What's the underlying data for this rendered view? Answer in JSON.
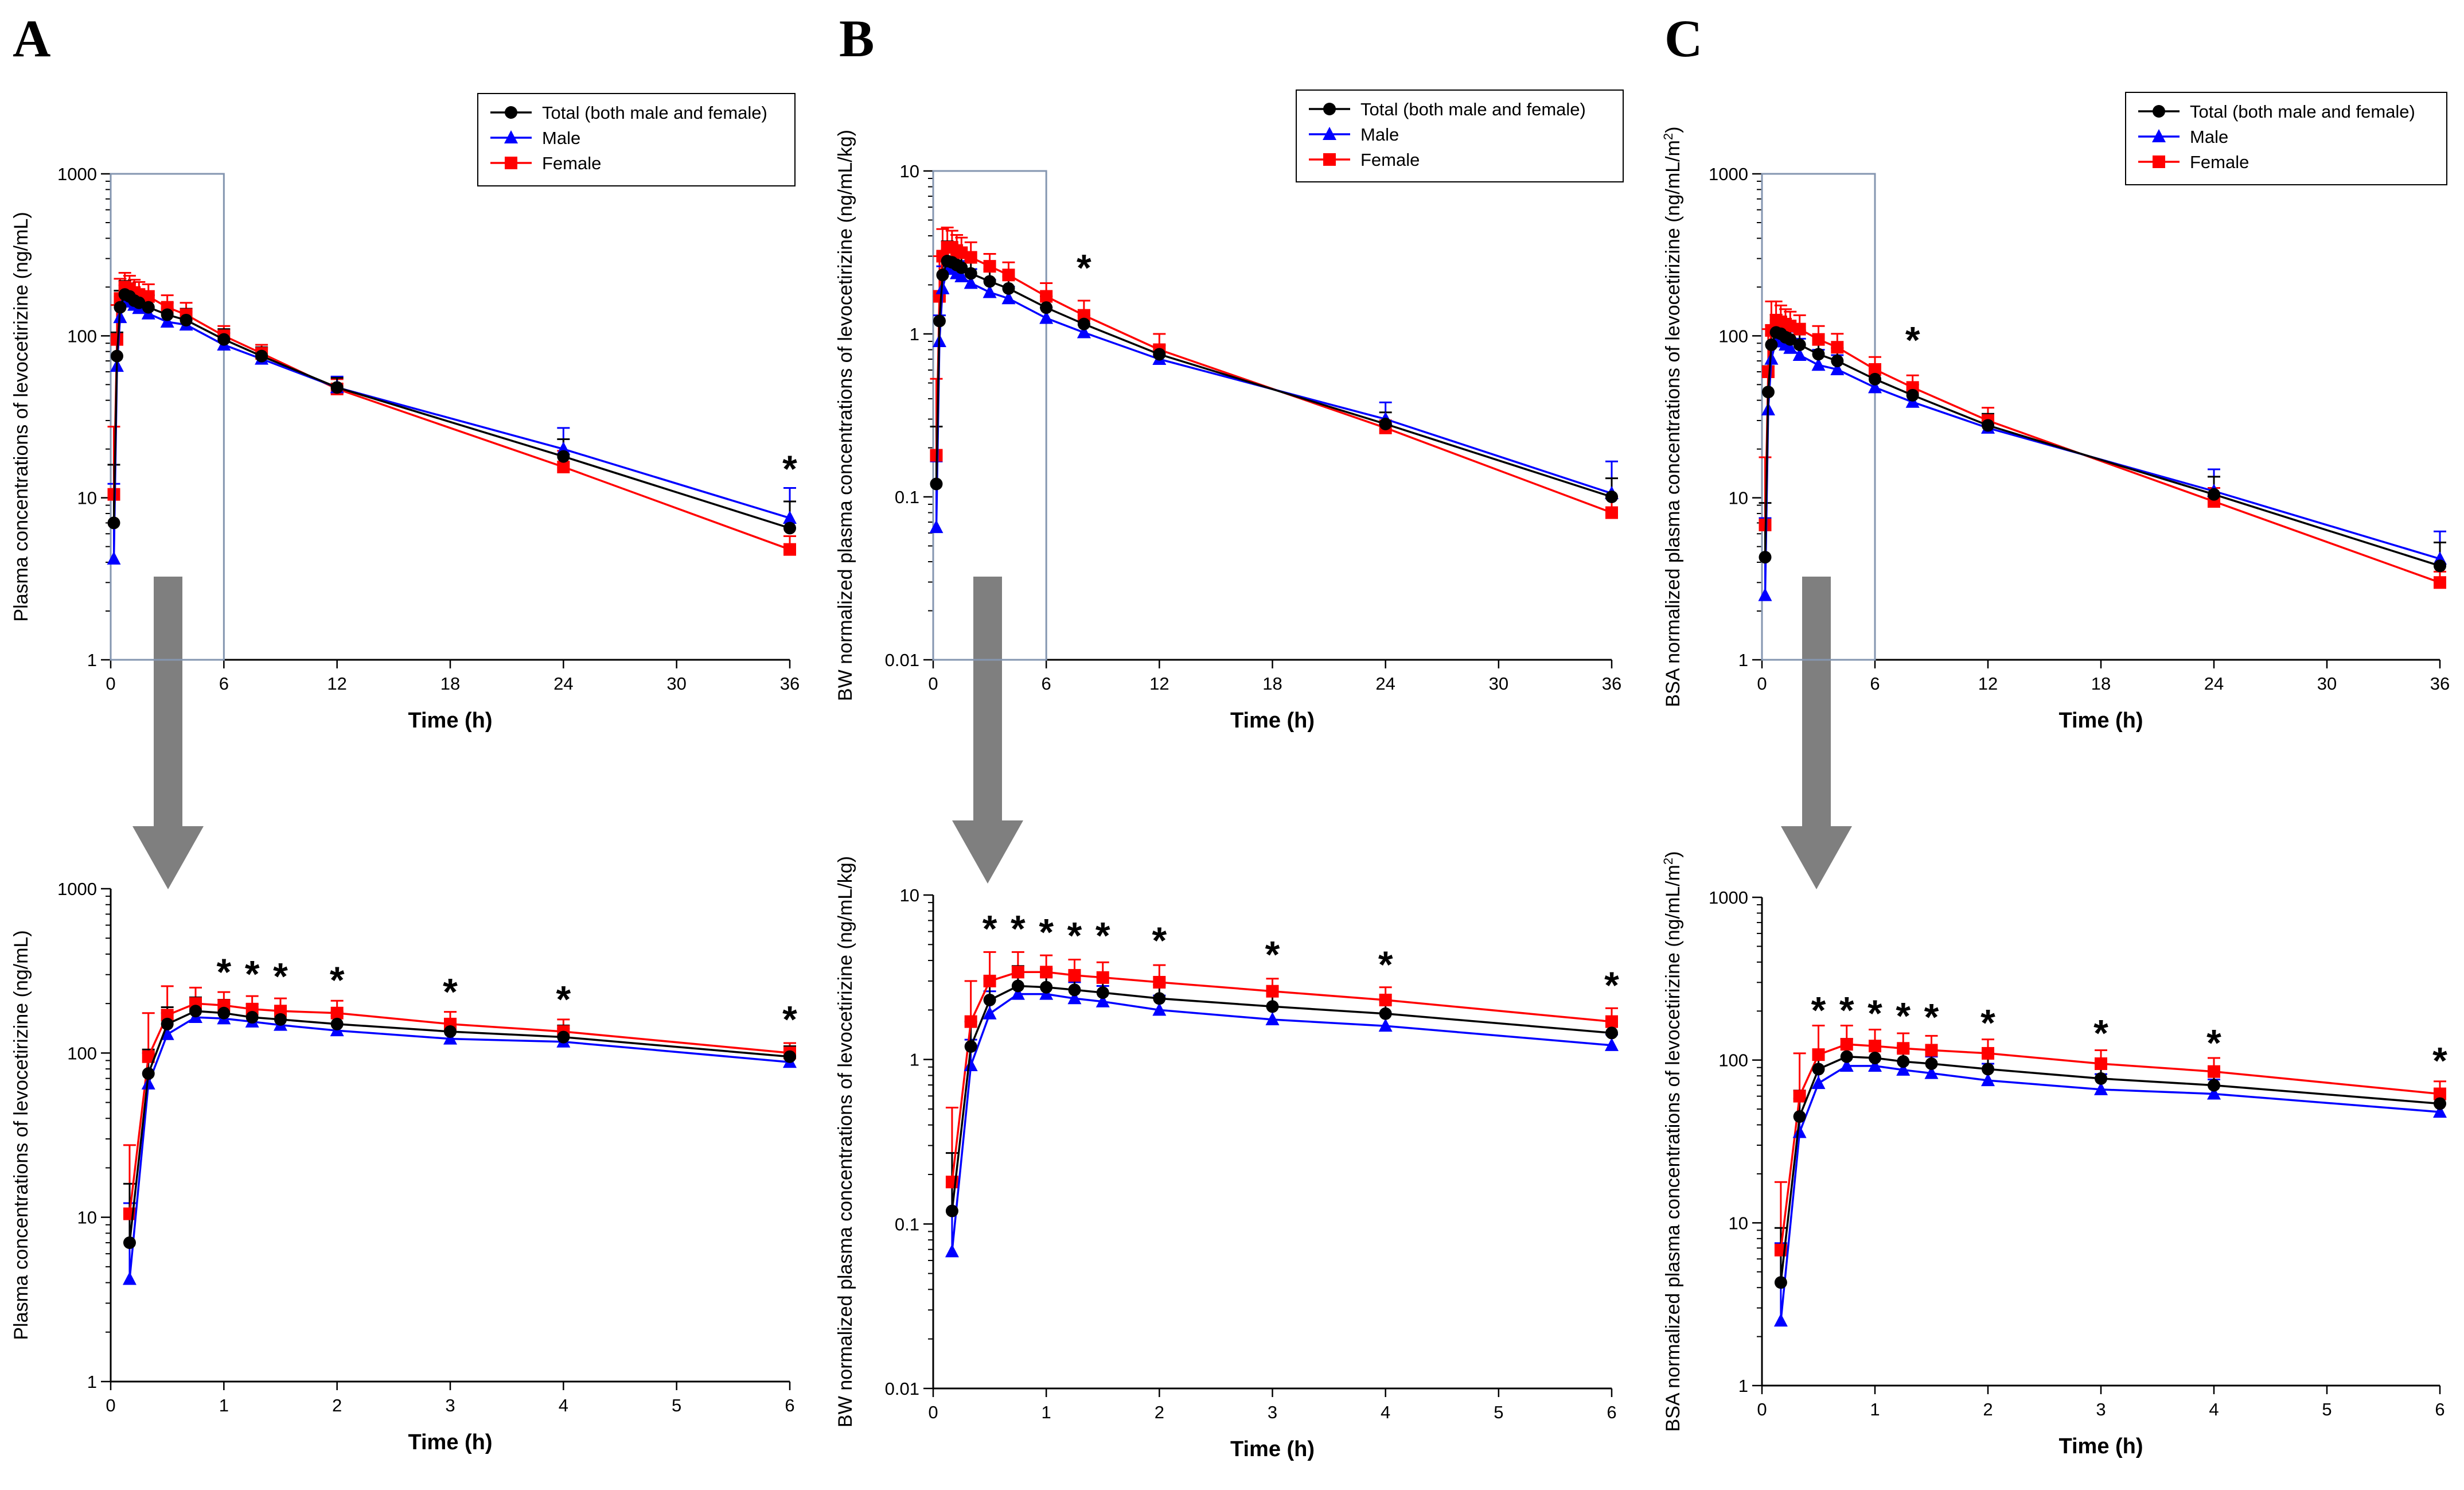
{
  "figure": {
    "panel_letters": [
      "A",
      "B",
      "C"
    ],
    "xlabel": "Time (h)",
    "series_colors": {
      "Total": "#000000",
      "Male": "#0000ff",
      "Female": "#ff0000"
    },
    "legend_entries": [
      "Total (both male and female)",
      "Male",
      "Female"
    ]
  },
  "chart_data": [
    {
      "id": "A-top",
      "panel": "A",
      "type": "line",
      "yscale": "log",
      "ylabel": "Plasma concentrations of levocetirizine (ng/mL)",
      "xlabel": "Time (h)",
      "xlim": [
        0,
        36
      ],
      "xticks": [
        0,
        6,
        12,
        18,
        24,
        30,
        36
      ],
      "ylim": [
        1,
        1000
      ],
      "yticks": [
        1,
        10,
        100,
        1000
      ],
      "ytick_labels": [
        "1",
        "10",
        "100",
        "1000"
      ],
      "legend": [
        "Total (both male and female)",
        "Male",
        "Female"
      ],
      "zoom_box": {
        "x": [
          0,
          6
        ],
        "y": [
          1,
          1000
        ]
      },
      "x": [
        0.167,
        0.333,
        0.5,
        0.75,
        1,
        1.25,
        1.5,
        2,
        3,
        4,
        6,
        8,
        12,
        24,
        36
      ],
      "series": [
        {
          "name": "Total",
          "values": [
            7,
            75,
            150,
            180,
            175,
            165,
            160,
            150,
            135,
            125,
            95,
            75,
            48,
            18,
            6.5
          ],
          "err": [
            9,
            30,
            40,
            38,
            36,
            33,
            30,
            28,
            25,
            22,
            15,
            10,
            7,
            5,
            3
          ]
        },
        {
          "name": "Male",
          "values": [
            4.2,
            65,
            130,
            165,
            162,
            155,
            148,
            137,
            122,
            117,
            88,
            72,
            48,
            20,
            7.5
          ],
          "err": [
            8,
            35,
            45,
            40,
            38,
            35,
            32,
            30,
            26,
            24,
            16,
            11,
            8,
            7,
            4
          ]
        },
        {
          "name": "Female",
          "values": [
            10.5,
            95,
            170,
            200,
            195,
            185,
            180,
            175,
            150,
            135,
            100,
            78,
            47,
            15.5,
            4.8
          ],
          "err": [
            17,
            60,
            55,
            45,
            40,
            37,
            35,
            33,
            28,
            25,
            15,
            10,
            7,
            4,
            1
          ]
        }
      ],
      "annotations": [
        {
          "x": 36,
          "y": 16,
          "text": "*"
        }
      ]
    },
    {
      "id": "A-bottom",
      "panel": "A",
      "type": "line",
      "yscale": "log",
      "ylabel": "Plasma concentrations of levocetirizine (ng/mL)",
      "xlabel": "Time (h)",
      "xlim": [
        0,
        6
      ],
      "xticks": [
        0,
        1,
        2,
        3,
        4,
        5,
        6
      ],
      "ylim": [
        1,
        1000
      ],
      "yticks": [
        1,
        10,
        100,
        1000
      ],
      "ytick_labels": [
        "1",
        "10",
        "100",
        "1000"
      ],
      "x": [
        0.167,
        0.333,
        0.5,
        0.75,
        1,
        1.25,
        1.5,
        2,
        3,
        4,
        6
      ],
      "series": [
        {
          "name": "Total",
          "values": [
            7,
            75,
            150,
            180,
            175,
            165,
            160,
            150,
            135,
            125,
            95
          ],
          "err": [
            9,
            30,
            40,
            38,
            36,
            33,
            30,
            28,
            25,
            22,
            15
          ]
        },
        {
          "name": "Male",
          "values": [
            4.2,
            65,
            130,
            165,
            162,
            155,
            148,
            137,
            122,
            117,
            88
          ],
          "err": [
            8,
            35,
            45,
            40,
            38,
            35,
            32,
            30,
            26,
            24,
            16
          ]
        },
        {
          "name": "Female",
          "values": [
            10.5,
            95,
            170,
            200,
            195,
            185,
            180,
            175,
            150,
            135,
            100
          ],
          "err": [
            17,
            80,
            85,
            50,
            40,
            37,
            35,
            33,
            28,
            25,
            15
          ]
        }
      ],
      "annotations": [
        {
          "x": 1,
          "y": 330,
          "text": "*"
        },
        {
          "x": 1.25,
          "y": 320,
          "text": "*"
        },
        {
          "x": 1.5,
          "y": 310,
          "text": "*"
        },
        {
          "x": 2,
          "y": 295,
          "text": "*"
        },
        {
          "x": 3,
          "y": 250,
          "text": "*"
        },
        {
          "x": 4,
          "y": 225,
          "text": "*"
        },
        {
          "x": 6,
          "y": 170,
          "text": "*"
        }
      ]
    },
    {
      "id": "B-top",
      "panel": "B",
      "type": "line",
      "yscale": "log",
      "ylabel": "BW normalized plasma concentrations of levocetirizine (ng/mL/kg)",
      "xlabel": "Time (h)",
      "xlim": [
        0,
        36
      ],
      "xticks": [
        0,
        6,
        12,
        18,
        24,
        30,
        36
      ],
      "ylim": [
        0.01,
        10
      ],
      "yticks": [
        0.01,
        0.1,
        1,
        10
      ],
      "ytick_labels": [
        "0.01",
        "0.1",
        "1",
        "10"
      ],
      "legend": [
        "Total (both male and female)",
        "Male",
        "Female"
      ],
      "zoom_box": {
        "x": [
          0,
          6
        ],
        "y": [
          0.01,
          10
        ]
      },
      "x": [
        0.167,
        0.333,
        0.5,
        0.75,
        1,
        1.25,
        1.5,
        2,
        3,
        4,
        6,
        8,
        12,
        24,
        36
      ],
      "series": [
        {
          "name": "Total",
          "values": [
            0.12,
            1.2,
            2.3,
            2.8,
            2.75,
            2.65,
            2.55,
            2.35,
            2.1,
            1.9,
            1.45,
            1.15,
            0.75,
            0.28,
            0.1
          ],
          "err": [
            0.15,
            0.5,
            0.8,
            0.9,
            0.8,
            0.7,
            0.6,
            0.5,
            0.4,
            0.35,
            0.25,
            0.15,
            0.1,
            0.05,
            0.03
          ]
        },
        {
          "name": "Male",
          "values": [
            0.065,
            0.9,
            1.9,
            2.5,
            2.5,
            2.35,
            2.25,
            2.05,
            1.8,
            1.65,
            1.25,
            1.02,
            0.7,
            0.3,
            0.105
          ],
          "err": [
            0.1,
            0.4,
            0.7,
            0.8,
            0.7,
            0.6,
            0.55,
            0.45,
            0.35,
            0.3,
            0.2,
            0.12,
            0.08,
            0.08,
            0.06
          ]
        },
        {
          "name": "Female",
          "values": [
            0.18,
            1.7,
            3.0,
            3.4,
            3.4,
            3.25,
            3.15,
            2.95,
            2.6,
            2.3,
            1.7,
            1.3,
            0.8,
            0.265,
            0.08
          ],
          "err": [
            0.35,
            1.3,
            1.4,
            1.1,
            0.9,
            0.8,
            0.75,
            0.7,
            0.5,
            0.45,
            0.35,
            0.3,
            0.2,
            0.03,
            0.02
          ]
        }
      ],
      "annotations": [
        {
          "x": 8,
          "y": 2.7,
          "text": "*"
        }
      ]
    },
    {
      "id": "B-bottom",
      "panel": "B",
      "type": "line",
      "yscale": "log",
      "ylabel": "BW normalized plasma concentrations of levocetirizine (ng/mL/kg)",
      "xlabel": "Time (h)",
      "xlim": [
        0,
        6
      ],
      "xticks": [
        0,
        1,
        2,
        3,
        4,
        5,
        6
      ],
      "ylim": [
        0.01,
        10
      ],
      "yticks": [
        0.01,
        0.1,
        1,
        10
      ],
      "ytick_labels": [
        "0.01",
        "0.1",
        "1",
        "10"
      ],
      "x": [
        0.167,
        0.333,
        0.5,
        0.75,
        1,
        1.25,
        1.5,
        2,
        3,
        4,
        6
      ],
      "series": [
        {
          "name": "Total",
          "values": [
            0.12,
            1.2,
            2.3,
            2.8,
            2.75,
            2.65,
            2.55,
            2.35,
            2.1,
            1.9,
            1.45
          ],
          "err": [
            0.15,
            0.5,
            0.8,
            0.9,
            0.8,
            0.7,
            0.6,
            0.5,
            0.4,
            0.35,
            0.25
          ]
        },
        {
          "name": "Male",
          "values": [
            0.068,
            0.92,
            1.9,
            2.5,
            2.5,
            2.35,
            2.25,
            2.0,
            1.75,
            1.6,
            1.22
          ],
          "err": [
            0.1,
            0.4,
            0.7,
            0.8,
            0.7,
            0.6,
            0.55,
            0.45,
            0.35,
            0.3,
            0.2
          ]
        },
        {
          "name": "Female",
          "values": [
            0.18,
            1.7,
            3.0,
            3.4,
            3.4,
            3.25,
            3.15,
            2.95,
            2.6,
            2.3,
            1.7
          ],
          "err": [
            0.33,
            1.3,
            1.5,
            1.1,
            0.9,
            0.8,
            0.75,
            0.8,
            0.5,
            0.45,
            0.35
          ]
        }
      ],
      "annotations": [
        {
          "x": 0.5,
          "y": 6.6,
          "text": "*"
        },
        {
          "x": 0.75,
          "y": 6.6,
          "text": "*"
        },
        {
          "x": 1,
          "y": 6.3,
          "text": "*"
        },
        {
          "x": 1.25,
          "y": 6.0,
          "text": "*"
        },
        {
          "x": 1.5,
          "y": 6.0,
          "text": "*"
        },
        {
          "x": 2,
          "y": 5.6,
          "text": "*"
        },
        {
          "x": 3,
          "y": 4.6,
          "text": "*"
        },
        {
          "x": 4,
          "y": 4.0,
          "text": "*"
        },
        {
          "x": 6,
          "y": 3.0,
          "text": "*"
        }
      ]
    },
    {
      "id": "C-top",
      "panel": "C",
      "type": "line",
      "yscale": "log",
      "ylabel": "BSA normalized plasma concentrations of levocetirizine (ng/mL/m",
      "ylabel_superscript": "2",
      "ylabel_suffix": ")",
      "xlabel": "Time (h)",
      "xlim": [
        0,
        36
      ],
      "xticks": [
        0,
        6,
        12,
        18,
        24,
        30,
        36
      ],
      "ylim": [
        1,
        1000
      ],
      "yticks": [
        1,
        10,
        100,
        1000
      ],
      "ytick_labels": [
        "1",
        "10",
        "100",
        "1000"
      ],
      "legend": [
        "Total (both male and female)",
        "Male",
        "Female"
      ],
      "zoom_box": {
        "x": [
          0,
          6
        ],
        "y": [
          1,
          1000
        ]
      },
      "x": [
        0.167,
        0.333,
        0.5,
        0.75,
        1,
        1.25,
        1.5,
        2,
        3,
        4,
        6,
        8,
        12,
        24,
        36
      ],
      "series": [
        {
          "name": "Total",
          "values": [
            4.3,
            45,
            88,
            105,
            103,
            98,
            95,
            88,
            77,
            70,
            54,
            43,
            28,
            10.5,
            3.8
          ],
          "err": [
            5,
            20,
            28,
            30,
            27,
            24,
            22,
            20,
            16,
            14,
            10,
            7,
            5,
            3,
            1.5
          ]
        },
        {
          "name": "Male",
          "values": [
            2.5,
            35,
            72,
            93,
            92,
            88,
            84,
            76,
            66,
            62,
            48,
            39,
            27,
            11,
            4.2
          ],
          "err": [
            5,
            22,
            30,
            32,
            28,
            25,
            22,
            20,
            16,
            14,
            10,
            7,
            5,
            4,
            2
          ]
        },
        {
          "name": "Female",
          "values": [
            6.8,
            60,
            108,
            125,
            122,
            118,
            115,
            110,
            95,
            85,
            62,
            48,
            30,
            9.5,
            3.0
          ],
          "err": [
            11,
            50,
            55,
            38,
            32,
            28,
            26,
            24,
            20,
            18,
            12,
            9,
            6,
            2,
            0.5
          ]
        }
      ],
      "annotations": [
        {
          "x": 8,
          "y": 100,
          "text": "*"
        }
      ]
    },
    {
      "id": "C-bottom",
      "panel": "C",
      "type": "line",
      "yscale": "log",
      "ylabel": "BSA normalized plasma concentrations of levocetirizine (ng/mL/m",
      "ylabel_superscript": "2",
      "ylabel_suffix": ")",
      "xlabel": "Time (h)",
      "xlim": [
        0,
        6
      ],
      "xticks": [
        0,
        1,
        2,
        3,
        4,
        5,
        6
      ],
      "ylim": [
        1,
        1000
      ],
      "yticks": [
        1,
        10,
        100,
        1000
      ],
      "ytick_labels": [
        "1",
        "10",
        "100",
        "1000"
      ],
      "x": [
        0.167,
        0.333,
        0.5,
        0.75,
        1,
        1.25,
        1.5,
        2,
        3,
        4,
        6
      ],
      "series": [
        {
          "name": "Total",
          "values": [
            4.3,
            45,
            88,
            105,
            103,
            98,
            95,
            88,
            77,
            70,
            54
          ],
          "err": [
            5,
            20,
            28,
            30,
            27,
            24,
            22,
            20,
            16,
            14,
            10
          ]
        },
        {
          "name": "Male",
          "values": [
            2.5,
            36,
            72,
            92,
            92,
            87,
            83,
            75,
            66,
            62,
            48
          ],
          "err": [
            5,
            22,
            30,
            32,
            28,
            25,
            22,
            20,
            16,
            14,
            10
          ]
        },
        {
          "name": "Female",
          "values": [
            6.8,
            60,
            108,
            125,
            122,
            118,
            115,
            110,
            95,
            85,
            62
          ],
          "err": [
            11,
            50,
            55,
            38,
            32,
            28,
            26,
            24,
            20,
            18,
            12
          ]
        }
      ],
      "annotations": [
        {
          "x": 0.5,
          "y": 215,
          "text": "*"
        },
        {
          "x": 0.75,
          "y": 215,
          "text": "*"
        },
        {
          "x": 1,
          "y": 205,
          "text": "*"
        },
        {
          "x": 1.25,
          "y": 198,
          "text": "*"
        },
        {
          "x": 1.5,
          "y": 195,
          "text": "*"
        },
        {
          "x": 2,
          "y": 180,
          "text": "*"
        },
        {
          "x": 3,
          "y": 155,
          "text": "*"
        },
        {
          "x": 4,
          "y": 135,
          "text": "*"
        },
        {
          "x": 6,
          "y": 105,
          "text": "*"
        }
      ]
    }
  ]
}
